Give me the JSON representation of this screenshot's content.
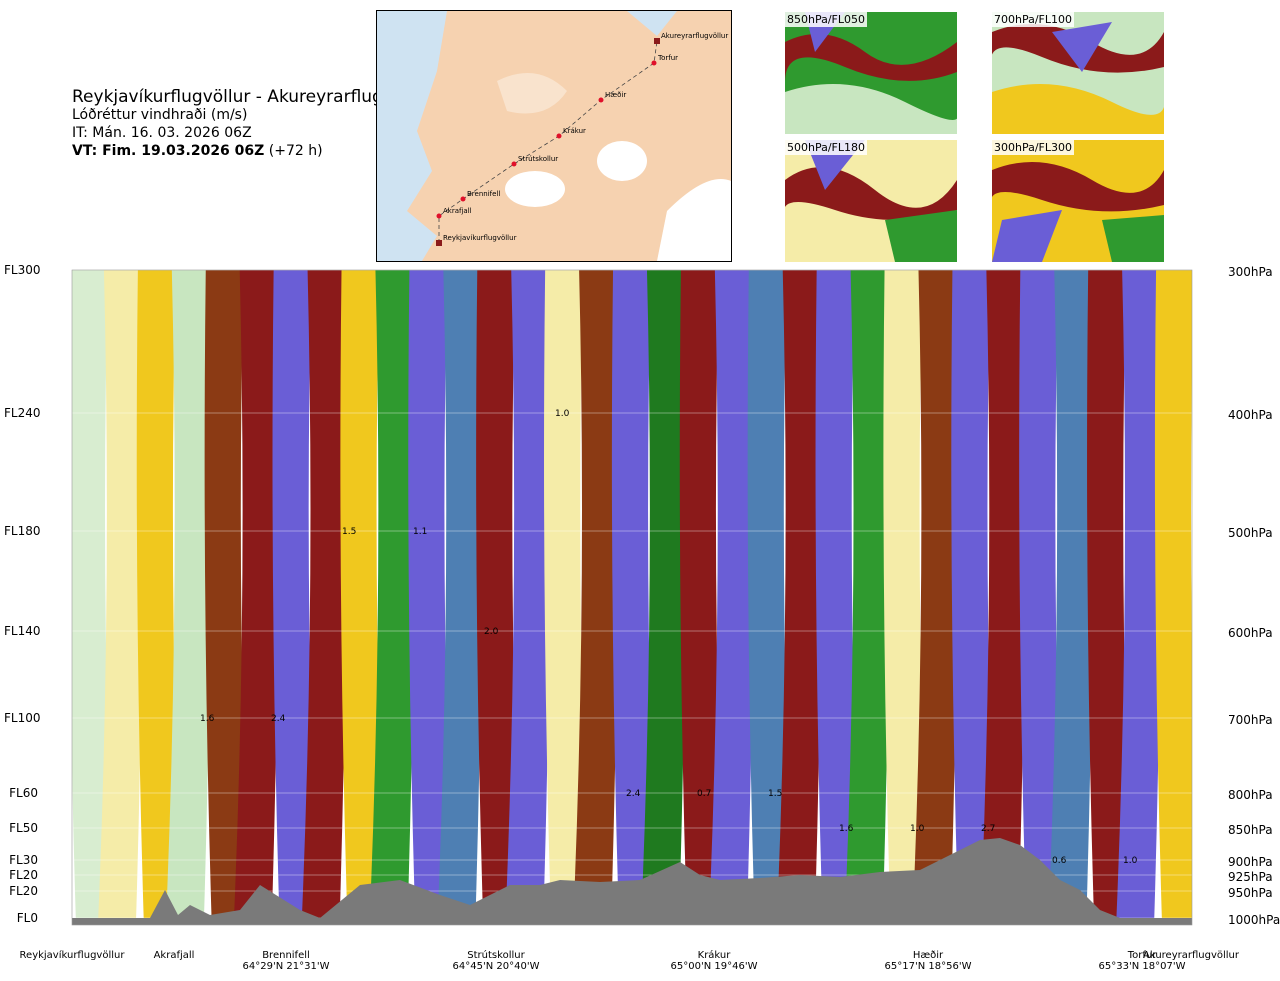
{
  "header": {
    "route_title": "Reykjavíkurflugvöllur - Akureyrarflugvöllur",
    "variable": "Lóðréttur vindhraði (m/s)",
    "issue_time": "IT: Mán. 16. 03. 2026 06Z",
    "valid_time_bold": "VT: Fim. 19.03.2026 06Z",
    "valid_offset": " (+72 h)"
  },
  "route_map": {
    "waypoints": [
      "Akureyrarflugvöllur",
      "Torfur",
      "Hæðir",
      "Krákur",
      "Strútskollur",
      "Brennifell",
      "Akrafjall",
      "Reykjavíkurflugvöllur"
    ],
    "colors": {
      "sea": "#cfe3f2",
      "land": "#f6d2b0",
      "ice": "#ffffff",
      "track": "#444444",
      "point": "#e0102a",
      "airport": "#8b1a1a"
    }
  },
  "level_maps": [
    {
      "label": "850hPa/FL050"
    },
    {
      "label": "700hPa/FL100"
    },
    {
      "label": "500hPa/FL180"
    },
    {
      "label": "300hPa/FL300"
    }
  ],
  "left_axis": [
    "FL300",
    "FL240",
    "FL180",
    "FL140",
    "FL100",
    "FL60",
    "FL50",
    "FL30",
    "FL20",
    "FL20",
    "FL0"
  ],
  "right_axis": [
    "300hPa",
    "400hPa",
    "500hPa",
    "600hPa",
    "700hPa",
    "800hPa",
    "850hPa",
    "900hPa",
    "925hPa",
    "950hPa",
    "1000hPa"
  ],
  "bottom_labels": [
    {
      "name": "Reykjavíkurflugvöllur",
      "coord": ""
    },
    {
      "name": "Akrafjall",
      "coord": ""
    },
    {
      "name": "Brennifell",
      "coord": "64°29'N 21°31'W"
    },
    {
      "name": "Strútskollur",
      "coord": "64°45'N 20°40'W"
    },
    {
      "name": "Krákur",
      "coord": "65°00'N 19°46'W"
    },
    {
      "name": "Hæðir",
      "coord": "65°17'N 18°56'W"
    },
    {
      "name": "Torfur",
      "coord": "65°33'N 18°07'W"
    },
    {
      "name": "Akureyrarflugvöllur",
      "coord": ""
    }
  ],
  "chart_data": {
    "type": "heatmap",
    "title": "Reykjavíkurflugvöllur - Akureyrarflugvöllur",
    "variable": "Lóðréttur vindhraði (m/s)",
    "x_axis": "waypoints along route",
    "y_axis_left": [
      "FL300",
      "FL240",
      "FL180",
      "FL140",
      "FL100",
      "FL60",
      "FL50",
      "FL30",
      "FL20",
      "FL20",
      "FL0"
    ],
    "y_axis_right_hPa": [
      300,
      400,
      500,
      600,
      700,
      800,
      850,
      900,
      925,
      950,
      1000
    ],
    "palette": [
      "#2a0a8c",
      "#6a5ed6",
      "#4e7fb3",
      "#1f7a1f",
      "#2f9a2f",
      "#7fbf7f",
      "#c8e6c0",
      "#eef6e6",
      "#f5eca8",
      "#f0c81e",
      "#e09010",
      "#8b3a14",
      "#8b1a1a",
      "#cc0000"
    ],
    "bands_left_to_right": [
      "#d8edd0",
      "#f5eca8",
      "#f0c81e",
      "#c8e6c0",
      "#8b3a14",
      "#8b1a1a",
      "#6a5ed6",
      "#8b1a1a",
      "#f0c81e",
      "#2f9a2f",
      "#6a5ed6",
      "#4e7fb3",
      "#8b1a1a",
      "#6a5ed6",
      "#f5eca8",
      "#8b3a14",
      "#6a5ed6",
      "#1f7a1f",
      "#8b1a1a",
      "#6a5ed6",
      "#4e7fb3",
      "#8b1a1a",
      "#6a5ed6",
      "#2f9a2f",
      "#f5eca8",
      "#8b3a14",
      "#6a5ed6",
      "#8b1a1a",
      "#6a5ed6",
      "#4e7fb3",
      "#8b1a1a",
      "#6a5ed6",
      "#f0c81e"
    ],
    "annotations": [
      {
        "text": "1.6",
        "level": "FL100"
      },
      {
        "text": "2.4",
        "level": "FL100"
      },
      {
        "text": "1.5",
        "level": "FL180"
      },
      {
        "text": "1.1",
        "level": "FL180"
      },
      {
        "text": "2.0",
        "level": "FL140"
      },
      {
        "text": "1.0",
        "level": "FL240"
      },
      {
        "text": "2.4",
        "level": "FL60"
      },
      {
        "text": "0.7",
        "level": "FL60"
      },
      {
        "text": "1.5",
        "level": "FL60"
      },
      {
        "text": "1.6",
        "level": "FL50"
      },
      {
        "text": "1.0",
        "level": "FL50"
      },
      {
        "text": "2.7",
        "level": "FL50"
      },
      {
        "text": "0.6",
        "level": "FL30"
      },
      {
        "text": "1.0",
        "level": "FL30"
      }
    ]
  }
}
